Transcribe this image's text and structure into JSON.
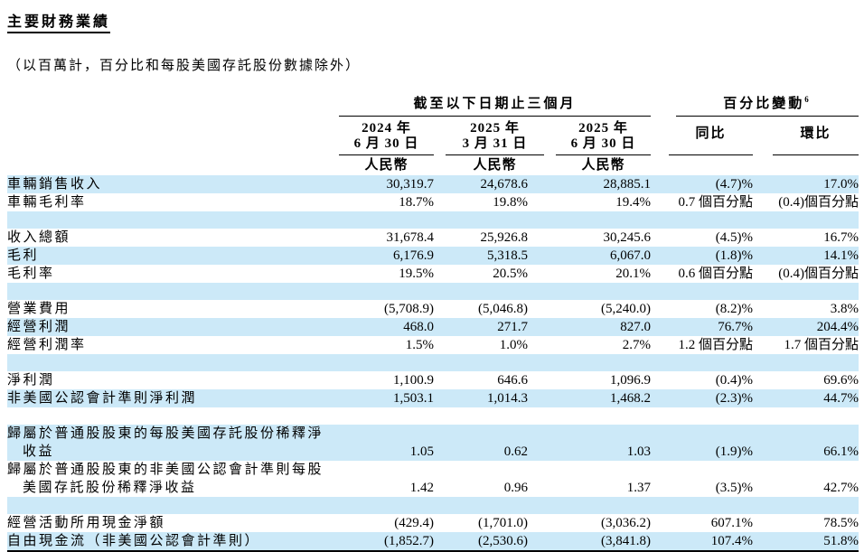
{
  "page": {
    "title": "主要財務業績",
    "subtitle": "（以百萬計，百分比和每股美國存託股份數據除外）"
  },
  "colors": {
    "row_highlight": "#cce9f8",
    "rule": "#000000"
  },
  "table": {
    "group1": "截至以下日期止三個月",
    "group2": "百分比變動",
    "group2_footnote": "6",
    "date_cols": [
      {
        "line1": "2024 年",
        "line2": "6 月 30 日",
        "currency": "人民幣"
      },
      {
        "line1": "2025 年",
        "line2": "3 月 31 日",
        "currency": "人民幣"
      },
      {
        "line1": "2025 年",
        "line2": "6 月 30 日",
        "currency": "人民幣"
      }
    ],
    "change_cols": [
      {
        "label": "同比"
      },
      {
        "label": "環比"
      }
    ],
    "rows": [
      {
        "type": "data",
        "shade": "blue",
        "label": "車輛銷售收入",
        "values": [
          "30,319.7",
          "24,678.6",
          "28,885.1",
          "(4.7)%",
          "17.0%"
        ]
      },
      {
        "type": "data",
        "shade": "white",
        "label": "車輛毛利率",
        "values": [
          "18.7%",
          "19.8%",
          "19.4%",
          "0.7 個百分點",
          "(0.4)個百分點"
        ]
      },
      {
        "type": "spacer",
        "shade": "blue"
      },
      {
        "type": "data",
        "shade": "white",
        "label": "收入總額",
        "values": [
          "31,678.4",
          "25,926.8",
          "30,245.6",
          "(4.5)%",
          "16.7%"
        ]
      },
      {
        "type": "data",
        "shade": "blue",
        "label": "毛利",
        "values": [
          "6,176.9",
          "5,318.5",
          "6,067.0",
          "(1.8)%",
          "14.1%"
        ]
      },
      {
        "type": "data",
        "shade": "white",
        "label": "毛利率",
        "values": [
          "19.5%",
          "20.5%",
          "20.1%",
          "0.6 個百分點",
          "(0.4)個百分點"
        ]
      },
      {
        "type": "spacer",
        "shade": "blue"
      },
      {
        "type": "data",
        "shade": "white",
        "label": "營業費用",
        "values": [
          "(5,708.9)",
          "(5,046.8)",
          "(5,240.0)",
          "(8.2)%",
          "3.8%"
        ]
      },
      {
        "type": "data",
        "shade": "blue",
        "label": "經營利潤",
        "values": [
          "468.0",
          "271.7",
          "827.0",
          "76.7%",
          "204.4%"
        ]
      },
      {
        "type": "data",
        "shade": "white",
        "label": "經營利潤率",
        "values": [
          "1.5%",
          "1.0%",
          "2.7%",
          "1.2 個百分點",
          "1.7 個百分點"
        ]
      },
      {
        "type": "spacer",
        "shade": "blue"
      },
      {
        "type": "data",
        "shade": "white",
        "label": "淨利潤",
        "values": [
          "1,100.9",
          "646.6",
          "1,096.9",
          "(0.4)%",
          "69.6%"
        ]
      },
      {
        "type": "data",
        "shade": "blue",
        "label": "非美國公認會計準則淨利潤",
        "values": [
          "1,503.1",
          "1,014.3",
          "1,468.2",
          "(2.3)%",
          "44.7%"
        ]
      },
      {
        "type": "spacer",
        "shade": "white"
      },
      {
        "type": "data2",
        "shade": "blue",
        "label_line1": "歸屬於普通股股東的每股美國存託股份稀釋淨",
        "label_line2": "收益",
        "values": [
          "1.05",
          "0.62",
          "1.03",
          "(1.9)%",
          "66.1%"
        ]
      },
      {
        "type": "data2",
        "shade": "white",
        "label_line1": "歸屬於普通股股東的非美國公認會計準則每股",
        "label_line2": "美國存託股份稀釋淨收益",
        "values": [
          "1.42",
          "0.96",
          "1.37",
          "(3.5)%",
          "42.7%"
        ]
      },
      {
        "type": "spacer",
        "shade": "blue"
      },
      {
        "type": "data",
        "shade": "white",
        "label": "經營活動所用現金淨額",
        "values": [
          "(429.4)",
          "(1,701.0)",
          "(3,036.2)",
          "607.1%",
          "78.5%"
        ]
      },
      {
        "type": "data",
        "shade": "blue",
        "label": "自由現金流（非美國公認會計準則）",
        "values": [
          "(1,852.7)",
          "(2,530.6)",
          "(3,841.8)",
          "107.4%",
          "51.8%"
        ]
      }
    ]
  }
}
